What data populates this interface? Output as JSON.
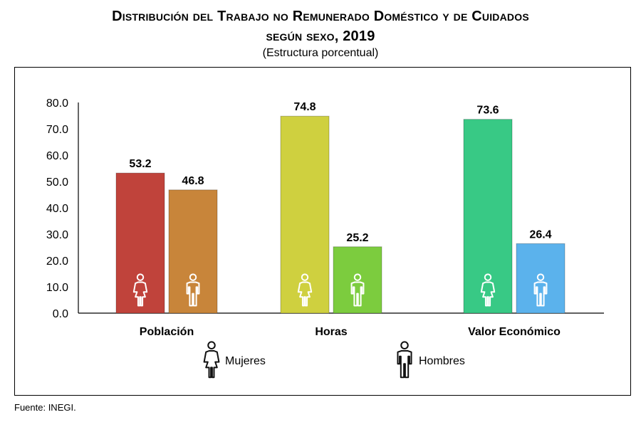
{
  "title_line1": "Distribución del Trabajo no Remunerado Doméstico y de Cuidados",
  "title_line2": "según sexo, 2019",
  "subtitle": "(Estructura porcentual)",
  "source": "Fuente: INEGI.",
  "chart_data": {
    "type": "bar",
    "title": "Distribución del Trabajo no Remunerado Doméstico y de Cuidados según sexo, 2019",
    "subtitle": "(Estructura porcentual)",
    "categories": [
      "Población",
      "Horas",
      "Valor Económico"
    ],
    "ylim": [
      0,
      80
    ],
    "yticks": [
      "0.0",
      "10.0",
      "20.0",
      "30.0",
      "40.0",
      "50.0",
      "60.0",
      "70.0",
      "80.0"
    ],
    "grid": false,
    "legend_position": "bottom",
    "series": [
      {
        "name": "Mujeres",
        "icon": "woman-icon",
        "values": [
          53.2,
          74.8,
          73.6
        ],
        "labels": [
          "53.2",
          "74.8",
          "73.6"
        ],
        "colors": [
          "#c0433b",
          "#cfd03f",
          "#38c985"
        ]
      },
      {
        "name": "Hombres",
        "icon": "man-icon",
        "values": [
          46.8,
          25.2,
          26.4
        ],
        "labels": [
          "46.8",
          "25.2",
          "26.4"
        ],
        "colors": [
          "#c8853a",
          "#7ccc3e",
          "#5bb2ec"
        ]
      }
    ]
  }
}
